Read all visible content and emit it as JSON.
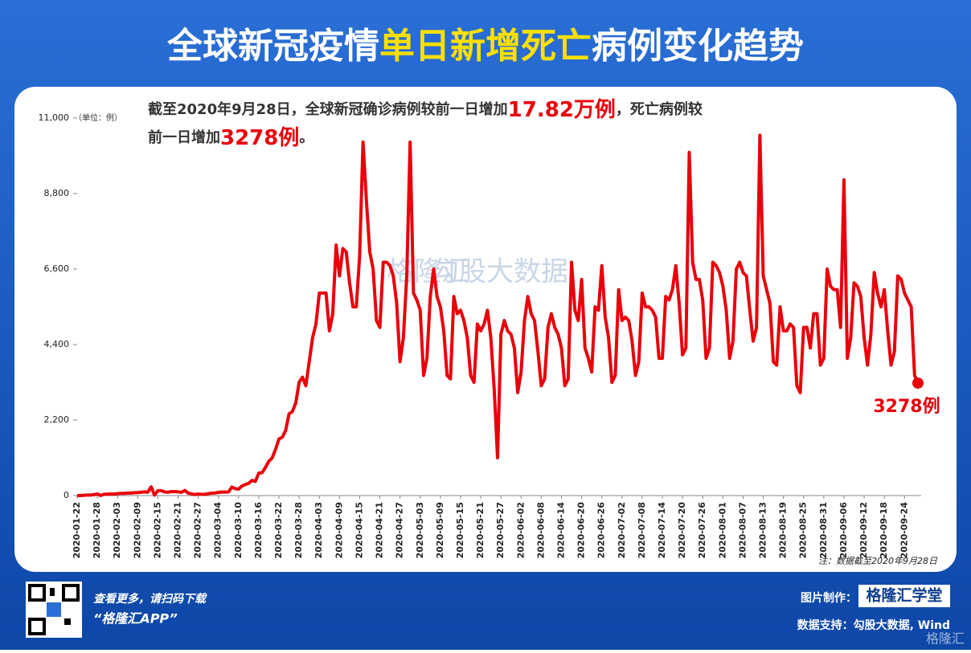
{
  "chart_data": {
    "type": "line",
    "title": [
      "全球新冠疫情",
      "单日新增死亡",
      "病例变化趋势"
    ],
    "annotation": [
      [
        "截至2020年9月28日，全球新冠确诊病例较前一日增加",
        "17.82万例",
        "，死亡病例较"
      ],
      [
        "前一日增加",
        "3278例",
        "。"
      ]
    ],
    "unit_label": "（单位：例）",
    "end_label": "3278例",
    "note": "注：数据截至2020年9月28日",
    "watermarks": [
      "格隆汇",
      "勾股大数据"
    ],
    "color": "#e8000b",
    "ylim": [
      0,
      11000
    ],
    "yticks": [
      0,
      {
        "value": 2200,
        "label": "2,200"
      },
      {
        "value": 4400,
        "label": "4,400"
      },
      {
        "value": 6600,
        "label": "6,600"
      },
      {
        "value": 8800,
        "label": "8,800"
      },
      {
        "value": 11000,
        "label": "11,000"
      }
    ],
    "categories": [
      "2020-01-22",
      null,
      null,
      null,
      null,
      null,
      "2020-01-28",
      null,
      null,
      null,
      null,
      null,
      "2020-02-03",
      null,
      null,
      null,
      null,
      null,
      "2020-02-09",
      null,
      null,
      null,
      null,
      null,
      "2020-02-15",
      null,
      null,
      null,
      null,
      null,
      "2020-02-21",
      null,
      null,
      null,
      null,
      null,
      "2020-02-27",
      null,
      null,
      null,
      null,
      null,
      "2020-03-04",
      null,
      null,
      null,
      null,
      null,
      "2020-03-10",
      null,
      null,
      null,
      null,
      null,
      "2020-03-16",
      null,
      null,
      null,
      null,
      null,
      "2020-03-22",
      null,
      null,
      null,
      null,
      null,
      "2020-03-28",
      null,
      null,
      null,
      null,
      null,
      "2020-04-03",
      null,
      null,
      null,
      null,
      null,
      "2020-04-09",
      null,
      null,
      null,
      null,
      null,
      "2020-04-15",
      null,
      null,
      null,
      null,
      null,
      "2020-04-21",
      null,
      null,
      null,
      null,
      null,
      "2020-04-27",
      null,
      null,
      null,
      null,
      null,
      "2020-05-03",
      null,
      null,
      null,
      null,
      null,
      "2020-05-09",
      null,
      null,
      null,
      null,
      null,
      "2020-05-15",
      null,
      null,
      null,
      null,
      null,
      "2020-05-21",
      null,
      null,
      null,
      null,
      null,
      "2020-05-27",
      null,
      null,
      null,
      null,
      null,
      "2020-06-02",
      null,
      null,
      null,
      null,
      null,
      "2020-06-08",
      null,
      null,
      null,
      null,
      null,
      "2020-06-14",
      null,
      null,
      null,
      null,
      null,
      "2020-06-20",
      null,
      null,
      null,
      null,
      null,
      "2020-06-26",
      null,
      null,
      null,
      null,
      null,
      "2020-07-02",
      null,
      null,
      null,
      null,
      null,
      "2020-07-08",
      null,
      null,
      null,
      null,
      null,
      "2020-07-14",
      null,
      null,
      null,
      null,
      null,
      "2020-07-20",
      null,
      null,
      null,
      null,
      null,
      "2020-07-26",
      null,
      null,
      null,
      null,
      null,
      "2020-08-01",
      null,
      null,
      null,
      null,
      null,
      "2020-08-07",
      null,
      null,
      null,
      null,
      null,
      "2020-08-13",
      null,
      null,
      null,
      null,
      null,
      "2020-08-19",
      null,
      null,
      null,
      null,
      null,
      "2020-08-25",
      null,
      null,
      null,
      null,
      null,
      "2020-08-31",
      null,
      null,
      null,
      null,
      null,
      "2020-09-06",
      null,
      null,
      null,
      null,
      null,
      "2020-09-12",
      null,
      null,
      null,
      null,
      null,
      "2020-09-18",
      null,
      null,
      null,
      null,
      null,
      "2020-09-24",
      null,
      null,
      null,
      null
    ],
    "values": [
      0,
      1,
      8,
      16,
      14,
      26,
      49,
      2,
      38,
      42,
      46,
      45,
      57,
      64,
      65,
      73,
      73,
      86,
      89,
      97,
      108,
      97,
      254,
      13,
      143,
      142,
      106,
      98,
      115,
      118,
      109,
      97,
      150,
      71,
      52,
      29,
      44,
      37,
      35,
      58,
      69,
      76,
      93,
      103,
      102,
      104,
      249,
      200,
      188,
      280,
      322,
      357,
      441,
      415,
      655,
      668,
      824,
      1000,
      1100,
      1350,
      1650,
      1700,
      1900,
      2380,
      2450,
      2700,
      3300,
      3450,
      3200,
      3900,
      4600,
      5000,
      5900,
      5900,
      5900,
      4800,
      5300,
      7300,
      6400,
      7200,
      7100,
      6200,
      5500,
      5500,
      7000,
      10300,
      8600,
      7100,
      6600,
      5100,
      4900,
      6800,
      6800,
      6700,
      6400,
      5600,
      3900,
      4600,
      6400,
      10300,
      5900,
      5700,
      5400,
      3500,
      4000,
      5800,
      6600,
      5800,
      5500,
      4800,
      3500,
      3400,
      5800,
      5300,
      5400,
      5100,
      4600,
      3500,
      3300,
      5000,
      4800,
      5000,
      5400,
      4600,
      3100,
      1100,
      4700,
      5100,
      4800,
      4700,
      4300,
      3000,
      3600,
      5100,
      5800,
      5300,
      5100,
      4200,
      3200,
      3400,
      4900,
      5300,
      4900,
      4700,
      4300,
      3200,
      3400,
      6800,
      5400,
      5100,
      6300,
      4300,
      4000,
      3600,
      5500,
      5400,
      6700,
      5200,
      4600,
      3300,
      3500,
      6000,
      5100,
      5200,
      5100,
      4500,
      3500,
      3900,
      5900,
      5500,
      5500,
      5400,
      5200,
      4000,
      4000,
      5800,
      5700,
      6000,
      6700,
      5600,
      4100,
      4300,
      10000,
      6800,
      6300,
      6300,
      5700,
      4000,
      4300,
      6800,
      6700,
      6500,
      6100,
      5400,
      4000,
      4500,
      6600,
      6800,
      6500,
      6400,
      5400,
      4500,
      4900,
      10500,
      6400,
      6000,
      5600,
      3900,
      3800,
      5500,
      4800,
      4800,
      5000,
      4900,
      3200,
      3000,
      4900,
      4900,
      4300,
      5300,
      5300,
      3800,
      4000,
      6600,
      6100,
      6000,
      6000,
      4900,
      9200,
      4000,
      4600,
      6200,
      6100,
      5800,
      4600,
      3800,
      4700,
      6500,
      5900,
      5500,
      6000,
      4800,
      3800,
      4200,
      6400,
      6300,
      5900,
      5700,
      5500,
      3500,
      3278
    ]
  },
  "footer": {
    "scan_text": "查看更多，请扫码下载",
    "app_name": "“格隆汇APP”",
    "made_by_label": "图片制作：",
    "made_by": "格隆汇学堂",
    "source": "数据支持：勾股大数据, Wind",
    "corner_logo": "格隆汇"
  }
}
